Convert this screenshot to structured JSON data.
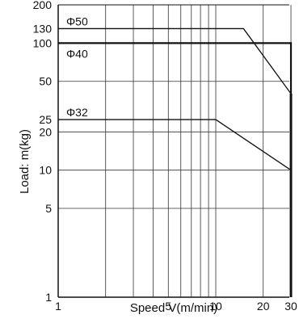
{
  "chart_data": {
    "type": "line",
    "xscale": "log",
    "yscale": "log",
    "xlim": [
      1,
      30
    ],
    "ylim": [
      1,
      200
    ],
    "xlabel": "Speed V(m/min)",
    "ylabel": "Load: m(kg)",
    "x_tick_labels": [
      {
        "value": 1,
        "label": "1"
      },
      {
        "value": 5,
        "label": "5"
      },
      {
        "value": 10,
        "label": "10"
      },
      {
        "value": 20,
        "label": "20"
      },
      {
        "value": 30,
        "label": "30"
      }
    ],
    "y_tick_labels": [
      {
        "value": 1,
        "label": "1"
      },
      {
        "value": 5,
        "label": "5"
      },
      {
        "value": 10,
        "label": "10"
      },
      {
        "value": 20,
        "label": "20"
      },
      {
        "value": 25,
        "label": "25"
      },
      {
        "value": 50,
        "label": "50"
      },
      {
        "value": 100,
        "label": "100"
      },
      {
        "value": 130,
        "label": "130"
      },
      {
        "value": 200,
        "label": "200"
      }
    ],
    "grid": true,
    "series": [
      {
        "name": "Φ50",
        "x": [
          1,
          15,
          30
        ],
        "y": [
          130,
          130,
          40
        ]
      },
      {
        "name": "Φ40",
        "x": [
          1,
          30,
          30
        ],
        "y": [
          100,
          100,
          1
        ]
      },
      {
        "name": "Φ32",
        "x": [
          1,
          10,
          30
        ],
        "y": [
          25,
          25,
          10
        ]
      }
    ]
  }
}
